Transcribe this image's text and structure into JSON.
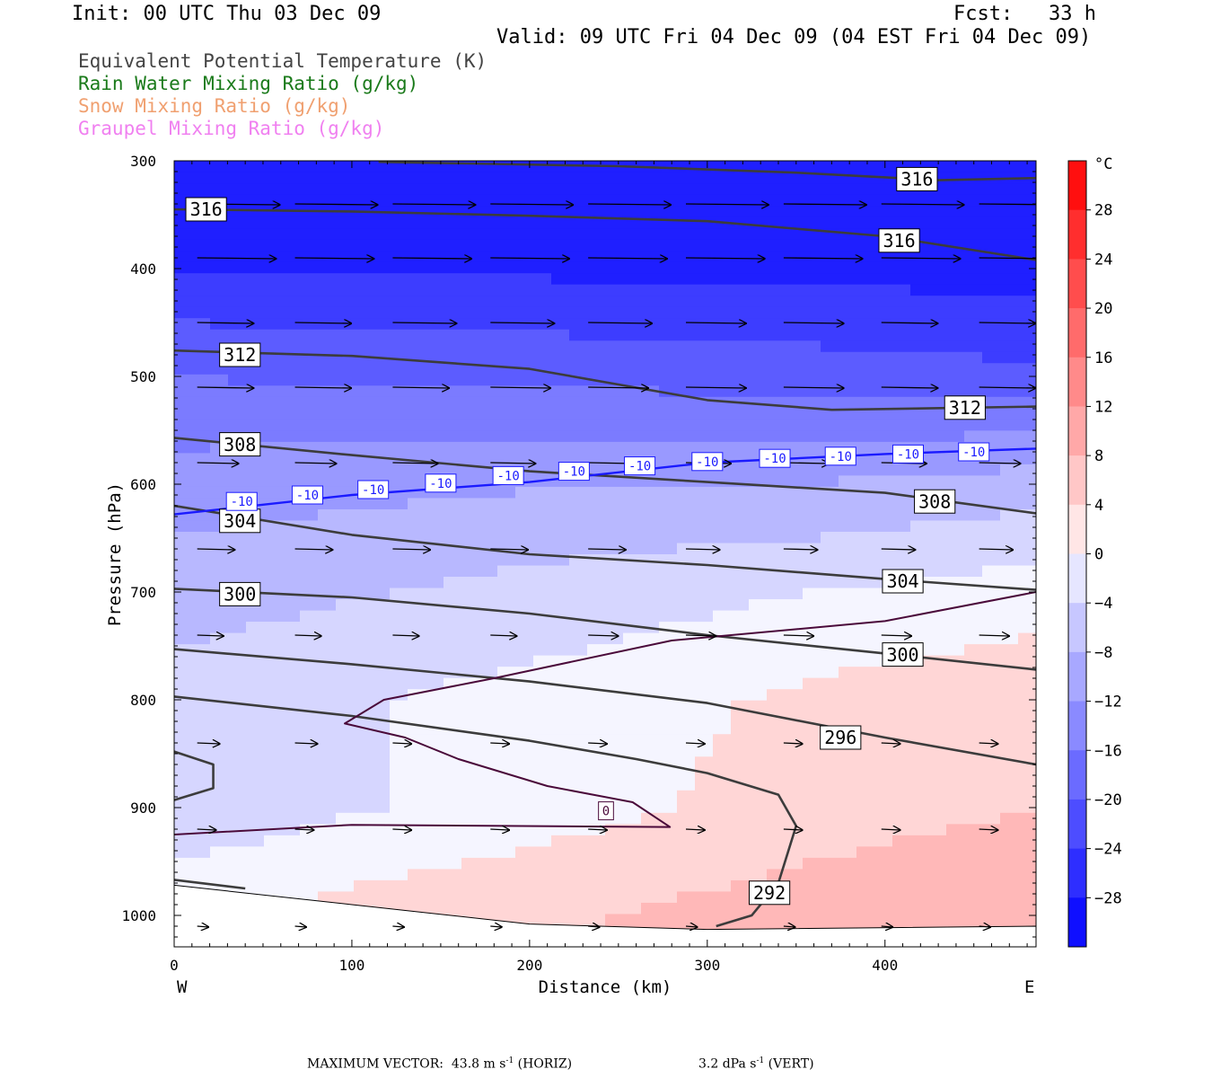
{
  "header": {
    "init": "Init: 00 UTC Thu 03 Dec 09",
    "fcst": "Fcst:   33 h",
    "valid": "Valid: 09 UTC Fri 04 Dec 09 (04 EST Fri 04 Dec 09)"
  },
  "legend": [
    {
      "label": "Equivalent Potential Temperature (K)",
      "color": "#444444"
    },
    {
      "label": "Rain Water Mixing Ratio (g/kg)",
      "color": "#1a7a1a"
    },
    {
      "label": "Snow Mixing Ratio (g/kg)",
      "color": "#f0a070"
    },
    {
      "label": "Graupel Mixing Ratio (g/kg)",
      "color": "#f080f0"
    }
  ],
  "footer": {
    "max_vector_prefix": "MAXIMUM VECTOR:  43.8 m s",
    "max_vector_suffix": " (HORIZ)",
    "vert_prefix": "3.2 dPa s",
    "vert_suffix": " (VERT)",
    "exponent": "-1"
  },
  "chart_data": {
    "type": "cross-section contour",
    "xlabel": "Distance (km)",
    "ylabel": "Pressure (hPa)",
    "xlim": [
      0,
      485
    ],
    "ylim": [
      1030,
      300
    ],
    "x_ticks": [
      0,
      100,
      200,
      300,
      400
    ],
    "y_ticks": [
      300,
      400,
      500,
      600,
      700,
      800,
      900,
      1000
    ],
    "x_end_labels": {
      "left": "W",
      "right": "E"
    },
    "colorbar": {
      "unit": "°C",
      "min": -32,
      "max": 32,
      "step": 4,
      "tick_labels": [
        28,
        24,
        20,
        16,
        12,
        8,
        4,
        0,
        -4,
        -8,
        -12,
        -16,
        -20,
        -24,
        -28
      ]
    },
    "temperature_field_rows": [
      {
        "p": 300,
        "t": [
          -30,
          -30,
          -30,
          -30,
          -30
        ]
      },
      {
        "p": 400,
        "t": [
          -26,
          -26,
          -27,
          -27,
          -28
        ]
      },
      {
        "p": 500,
        "t": [
          -18,
          -19,
          -19,
          -20,
          -21
        ]
      },
      {
        "p": 600,
        "t": [
          -12,
          -11,
          -10,
          -10,
          -8
        ]
      },
      {
        "p": 700,
        "t": [
          -8,
          -6,
          -4,
          -2,
          0
        ]
      },
      {
        "p": 800,
        "t": [
          -4,
          -2,
          0,
          3,
          5
        ]
      },
      {
        "p": 900,
        "t": [
          -5,
          -2,
          1,
          4,
          6
        ]
      },
      {
        "p": 1000,
        "t": [
          1,
          4,
          6,
          8,
          10
        ]
      }
    ],
    "temperature_field_x": [
      0,
      120,
      240,
      360,
      485
    ],
    "theta_e_contours": [
      {
        "label": "316",
        "points": [
          [
            0,
            345
          ],
          [
            100,
            347
          ],
          [
            200,
            351
          ],
          [
            300,
            356
          ],
          [
            400,
            370
          ],
          [
            485,
            392
          ]
        ]
      },
      {
        "label": "316",
        "points": [
          [
            115,
            301
          ],
          [
            250,
            305
          ],
          [
            350,
            311
          ],
          [
            430,
            318
          ],
          [
            485,
            316
          ]
        ]
      },
      {
        "label": "312",
        "points": [
          [
            0,
            476
          ],
          [
            100,
            481
          ],
          [
            200,
            493
          ],
          [
            300,
            522
          ],
          [
            370,
            531
          ],
          [
            485,
            528
          ]
        ]
      },
      {
        "label": "308",
        "points": [
          [
            0,
            557
          ],
          [
            100,
            573
          ],
          [
            200,
            588
          ],
          [
            300,
            598
          ],
          [
            400,
            608
          ],
          [
            485,
            627
          ]
        ]
      },
      {
        "label": "304",
        "points": [
          [
            0,
            620
          ],
          [
            100,
            647
          ],
          [
            200,
            665
          ],
          [
            300,
            675
          ],
          [
            400,
            688
          ],
          [
            485,
            698
          ]
        ]
      },
      {
        "label": "300",
        "points": [
          [
            0,
            697
          ],
          [
            100,
            705
          ],
          [
            200,
            720
          ],
          [
            300,
            740
          ],
          [
            400,
            757
          ],
          [
            485,
            772
          ]
        ]
      },
      {
        "label": "296",
        "points": [
          [
            0,
            753
          ],
          [
            100,
            767
          ],
          [
            200,
            783
          ],
          [
            300,
            803
          ],
          [
            400,
            835
          ],
          [
            485,
            860
          ]
        ]
      },
      {
        "label": "",
        "points": [
          [
            0,
            797
          ],
          [
            100,
            815
          ],
          [
            200,
            838
          ],
          [
            260,
            855
          ],
          [
            300,
            868
          ],
          [
            340,
            888
          ],
          [
            350,
            917
          ],
          [
            340,
            970
          ],
          [
            325,
            1000
          ],
          [
            305,
            1010
          ]
        ]
      },
      {
        "label": "",
        "points": [
          [
            0,
            848
          ],
          [
            22,
            860
          ],
          [
            22,
            882
          ],
          [
            0,
            893
          ]
        ]
      },
      {
        "label": "",
        "points": [
          [
            0,
            967
          ],
          [
            40,
            975
          ]
        ]
      }
    ],
    "isotherm_contours": [
      {
        "label": "0",
        "points": [
          [
            0,
            925
          ],
          [
            100,
            916
          ],
          [
            279,
            918
          ],
          [
            258,
            895
          ],
          [
            210,
            880
          ],
          [
            160,
            855
          ],
          [
            130,
            835
          ],
          [
            96,
            822
          ],
          [
            118,
            800
          ],
          [
            180,
            780
          ],
          [
            280,
            745
          ],
          [
            400,
            727
          ],
          [
            485,
            700
          ]
        ]
      },
      {
        "label": "-10",
        "points": [
          [
            0,
            628
          ],
          [
            100,
            610
          ],
          [
            200,
            598
          ],
          [
            300,
            580
          ],
          [
            400,
            572
          ],
          [
            485,
            567
          ]
        ]
      }
    ],
    "ground_pressure": [
      [
        0,
        972
      ],
      [
        100,
        990
      ],
      [
        200,
        1008
      ],
      [
        300,
        1013
      ],
      [
        485,
        1010
      ]
    ],
    "wind_vectors": [
      {
        "p": 340,
        "u": [
          44,
          44,
          44,
          44,
          44,
          44,
          44,
          44,
          44
        ]
      },
      {
        "p": 390,
        "u": [
          42,
          42,
          42,
          42,
          42,
          42,
          42,
          42,
          42
        ]
      },
      {
        "p": 450,
        "u": [
          30,
          30,
          34,
          34,
          34,
          32,
          32,
          30,
          30
        ]
      },
      {
        "p": 510,
        "u": [
          30,
          30,
          30,
          32,
          32,
          32,
          32,
          30,
          30
        ]
      },
      {
        "p": 580,
        "u": [
          22,
          22,
          24,
          24,
          24,
          24,
          24,
          24,
          22
        ]
      },
      {
        "p": 660,
        "u": [
          20,
          20,
          20,
          20,
          20,
          18,
          18,
          18,
          18
        ]
      },
      {
        "p": 740,
        "u": [
          14,
          14,
          14,
          14,
          16,
          16,
          16,
          16,
          16
        ]
      },
      {
        "p": 840,
        "u": [
          12,
          12,
          10,
          10,
          10,
          10,
          10,
          10,
          10
        ]
      },
      {
        "p": 920,
        "u": [
          10,
          10,
          10,
          10,
          10,
          10,
          10,
          10,
          10
        ]
      },
      {
        "p": 1010,
        "u": [
          6,
          6,
          6,
          6,
          6,
          6,
          6,
          6,
          6
        ]
      }
    ],
    "wind_vector_x": [
      15,
      70,
      125,
      180,
      235,
      290,
      345,
      400,
      455
    ]
  }
}
